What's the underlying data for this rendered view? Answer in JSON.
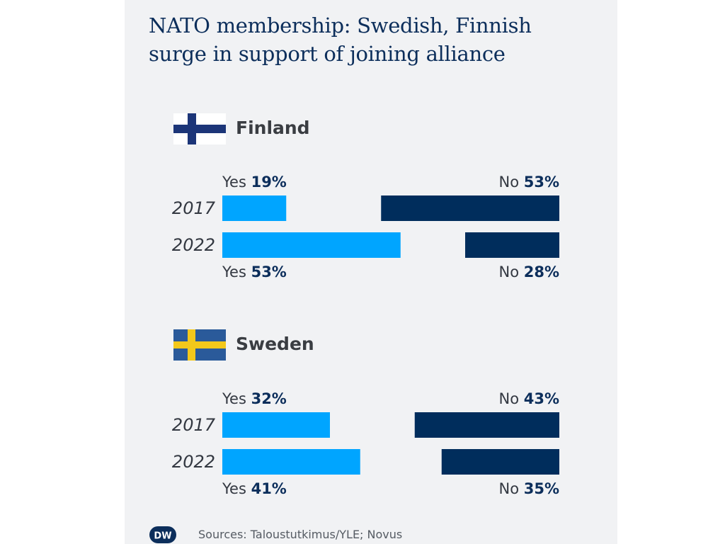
{
  "title_lines": [
    "NATO membership: Swedish, Finnish",
    "surge in support of joining alliance"
  ],
  "colors": {
    "yes": "#00a5ff",
    "no": "#002d5c",
    "title": "#0c2e5b",
    "background": "#f1f2f4"
  },
  "chart_data": [
    {
      "type": "bar",
      "country": "Finland",
      "flag_icon": "finland-flag-icon",
      "categories": [
        "2017",
        "2022"
      ],
      "series": [
        {
          "name": "Yes",
          "values": [
            19,
            53
          ]
        },
        {
          "name": "No",
          "values": [
            53,
            28
          ]
        }
      ],
      "value_unit": "%"
    },
    {
      "type": "bar",
      "country": "Sweden",
      "flag_icon": "sweden-flag-icon",
      "categories": [
        "2017",
        "2022"
      ],
      "series": [
        {
          "name": "Yes",
          "values": [
            32,
            41
          ]
        },
        {
          "name": "No",
          "values": [
            43,
            35
          ]
        }
      ],
      "value_unit": "%"
    }
  ],
  "footer": {
    "logo_text": "DW",
    "source": "Sources: Taloustutkimus/YLE; Novus"
  }
}
